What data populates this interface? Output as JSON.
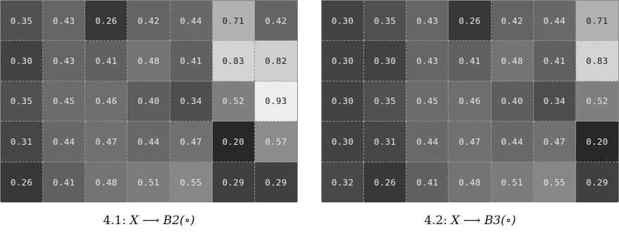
{
  "panels": [
    {
      "caption": {
        "prefix": "4.1: ",
        "math": "X ⟶ B2(∘)"
      },
      "rows": [
        [
          "0.35",
          "0.43",
          "0.26",
          "0.42",
          "0.44",
          "0.71",
          "0.42"
        ],
        [
          "0.30",
          "0.43",
          "0.41",
          "0.48",
          "0.41",
          "0.83",
          "0.82"
        ],
        [
          "0.35",
          "0.45",
          "0.46",
          "0.40",
          "0.34",
          "0.52",
          "0.93"
        ],
        [
          "0.31",
          "0.44",
          "0.47",
          "0.44",
          "0.47",
          "0.20",
          "0.57"
        ],
        [
          "0.26",
          "0.41",
          "0.48",
          "0.51",
          "0.55",
          "0.29",
          "0.29"
        ]
      ]
    },
    {
      "caption": {
        "prefix": "4.2: ",
        "math": "X ⟶ B3(∘)"
      },
      "rows": [
        [
          "0.30",
          "0.35",
          "0.43",
          "0.26",
          "0.42",
          "0.44",
          "0.71"
        ],
        [
          "0.30",
          "0.30",
          "0.43",
          "0.41",
          "0.48",
          "0.41",
          "0.83"
        ],
        [
          "0.30",
          "0.35",
          "0.45",
          "0.46",
          "0.40",
          "0.34",
          "0.52"
        ],
        [
          "0.30",
          "0.31",
          "0.44",
          "0.47",
          "0.44",
          "0.47",
          "0.20"
        ],
        [
          "0.32",
          "0.26",
          "0.41",
          "0.48",
          "0.51",
          "0.55",
          "0.29"
        ]
      ]
    }
  ]
}
